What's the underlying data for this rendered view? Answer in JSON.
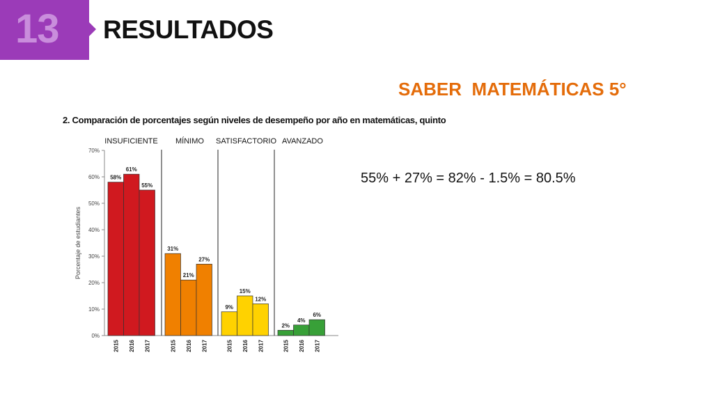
{
  "slide": {
    "number": "13",
    "title": "RESULTADOS",
    "subject": "SABER  MATEMÁTICAS 5°",
    "formula": "55% + 27% = 82% - 1.5% = 80.5%",
    "colors": {
      "badge": "#9b3bb8",
      "subject": "#e46c0a"
    }
  },
  "chart_data": {
    "type": "bar",
    "title": "2. Comparación de porcentajes según niveles de desempeño por año en matemáticas, quinto",
    "ylabel": "Porcentaje de estudiantes",
    "ylim": [
      0,
      70
    ],
    "yticks": [
      "0%",
      "10%",
      "20%",
      "30%",
      "40%",
      "50%",
      "60%",
      "70%"
    ],
    "years": [
      "2015",
      "2016",
      "2017"
    ],
    "groups": [
      {
        "name": "INSUFICIENTE",
        "color": "#d0191f",
        "values": [
          58,
          61,
          55
        ],
        "labels": [
          "58%",
          "61%",
          "55%"
        ]
      },
      {
        "name": "MÍNIMO",
        "color": "#f08000",
        "values": [
          31,
          21,
          27
        ],
        "labels": [
          "31%",
          "21%",
          "27%"
        ]
      },
      {
        "name": "SATISFACTORIO",
        "color": "#ffd200",
        "values": [
          9,
          15,
          12
        ],
        "labels": [
          "9%",
          "15%",
          "12%"
        ]
      },
      {
        "name": "AVANZADO",
        "color": "#38a038",
        "values": [
          2,
          4,
          6
        ],
        "labels": [
          "2%",
          "4%",
          "6%"
        ]
      }
    ]
  }
}
